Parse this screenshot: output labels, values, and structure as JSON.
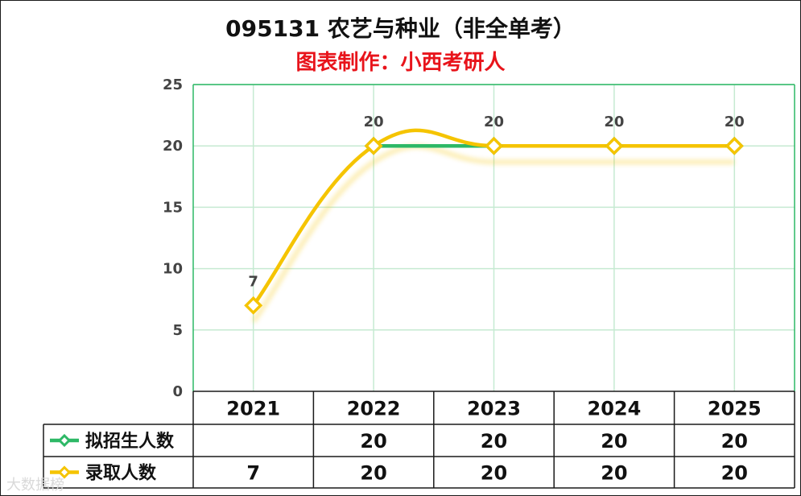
{
  "chart_data": {
    "type": "line",
    "title": "095131 农艺与种业（非全单考）",
    "subtitle": "图表制作：小西考研人",
    "categories": [
      "2021",
      "2022",
      "2023",
      "2024",
      "2025"
    ],
    "ylim": [
      0,
      25
    ],
    "yticks": [
      0,
      5,
      10,
      15,
      20,
      25
    ],
    "grid": true,
    "series": [
      {
        "name": "拟招生人数",
        "color": "#2db866",
        "values": [
          null,
          20,
          20,
          20,
          20
        ],
        "labels": [
          "",
          "20",
          "20",
          "20",
          "20"
        ]
      },
      {
        "name": "录取人数",
        "color": "#f5c400",
        "values": [
          7,
          20,
          20,
          20,
          20
        ],
        "labels": [
          "7",
          "20",
          "20",
          "20",
          "20"
        ]
      }
    ],
    "point_labels": [
      "7",
      "20",
      "20",
      "20",
      "20"
    ]
  },
  "watermark": "大数据榜"
}
